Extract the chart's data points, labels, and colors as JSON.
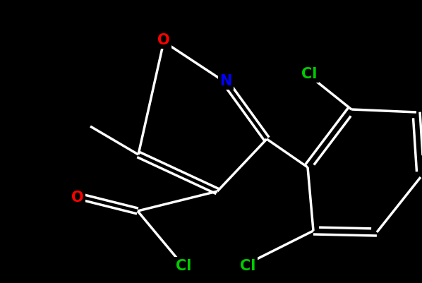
{
  "background_color": "#000000",
  "bond_color": "#ffffff",
  "atom_colors": {
    "O": "#ff0000",
    "N": "#0000ff",
    "Cl": "#00cc00",
    "C": "#ffffff"
  },
  "bond_width": 2.5,
  "font_size_atoms": 15,
  "scale": 80
}
